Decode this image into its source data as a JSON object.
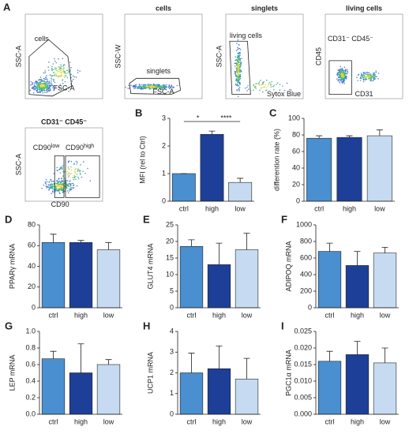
{
  "flow": {
    "panel": "A",
    "plots": [
      {
        "y_label": "SSC-A",
        "x_label": "FSC-A",
        "gates": [
          {
            "label": "cells"
          }
        ]
      },
      {
        "title": "cells",
        "y_label": "SSC-W",
        "x_label": "FSC-A",
        "gates": [
          {
            "label": "singlets"
          }
        ]
      },
      {
        "title": "singlets",
        "y_label": "SSC-A",
        "x_label": "Sytox Blue",
        "gates": [
          {
            "label": "living cells"
          }
        ]
      },
      {
        "title": "living cells",
        "y_label": "CD45",
        "x_label": "CD31",
        "gates": [
          {
            "label": "CD31⁻ CD45⁻"
          }
        ]
      },
      {
        "title": "CD31⁻ CD45⁻",
        "y_label": "SSC-A",
        "x_label": "CD90",
        "gates": [
          {
            "label": "CD90",
            "sup": "low"
          },
          {
            "label": "CD90",
            "sup": "high"
          }
        ]
      }
    ]
  },
  "chart_data": [
    {
      "type": "bar",
      "panel": "B",
      "y_label": "MFI (rel to Ctrl)",
      "categories": [
        "ctrl",
        "high",
        "low"
      ],
      "values": [
        1,
        2.42,
        0.68
      ],
      "errors": [
        0,
        0.12,
        0.15
      ],
      "colors": [
        "#4a8fcf",
        "#1e3f98",
        "#c6dbf1"
      ],
      "ylim": [
        0,
        3
      ],
      "yticks": [
        0,
        1,
        2,
        3
      ],
      "significance": [
        "*",
        "****"
      ]
    },
    {
      "type": "bar",
      "panel": "C",
      "y_label": "differention rate (%)",
      "categories": [
        "ctrl",
        "high",
        "low"
      ],
      "values": [
        76,
        77,
        79
      ],
      "errors": [
        3,
        2,
        7
      ],
      "colors": [
        "#4a8fcf",
        "#1e3f98",
        "#c6dbf1"
      ],
      "ylim": [
        0,
        100
      ],
      "yticks": [
        0,
        20,
        40,
        60,
        80,
        100
      ]
    },
    {
      "type": "bar",
      "panel": "D",
      "y_label": "PPARγ mRNA",
      "categories": [
        "ctrl",
        "high",
        "low"
      ],
      "values": [
        63,
        63,
        56
      ],
      "errors": [
        8,
        2,
        7
      ],
      "colors": [
        "#4a8fcf",
        "#1e3f98",
        "#c6dbf1"
      ],
      "ylim": [
        0,
        80
      ],
      "yticks": [
        0,
        20,
        40,
        60,
        80
      ]
    },
    {
      "type": "bar",
      "panel": "E",
      "y_label": "GLUT4 mRNA",
      "categories": [
        "ctrl",
        "high",
        "low"
      ],
      "values": [
        18.5,
        13,
        17.5
      ],
      "errors": [
        2,
        6.5,
        5
      ],
      "colors": [
        "#4a8fcf",
        "#1e3f98",
        "#c6dbf1"
      ],
      "ylim": [
        0,
        25
      ],
      "yticks": [
        0,
        5,
        10,
        15,
        20,
        25
      ]
    },
    {
      "type": "bar",
      "panel": "F",
      "y_label": "ADIPOQ mRNA",
      "categories": [
        "ctrl",
        "high",
        "low"
      ],
      "values": [
        680,
        510,
        660
      ],
      "errors": [
        100,
        170,
        70
      ],
      "colors": [
        "#4a8fcf",
        "#1e3f98",
        "#c6dbf1"
      ],
      "ylim": [
        0,
        1000
      ],
      "yticks": [
        0,
        200,
        400,
        600,
        800,
        1000
      ]
    },
    {
      "type": "bar",
      "panel": "G",
      "y_label": "LEP mRNA",
      "categories": [
        "ctrl",
        "high",
        "low"
      ],
      "values": [
        0.67,
        0.5,
        0.6
      ],
      "errors": [
        0.09,
        0.35,
        0.06
      ],
      "colors": [
        "#4a8fcf",
        "#1e3f98",
        "#c6dbf1"
      ],
      "ylim": [
        0,
        1
      ],
      "yticks": [
        {
          "value": 0,
          "label": "0.0"
        },
        0.2,
        0.4,
        0.6,
        0.8,
        {
          "value": 1,
          "label": "1.0"
        }
      ]
    },
    {
      "type": "bar",
      "panel": "H",
      "y_label": "UCP1 mRNA",
      "categories": [
        "ctrl",
        "high",
        "low"
      ],
      "values": [
        2.0,
        2.2,
        1.7
      ],
      "errors": [
        0.95,
        1.1,
        1.0
      ],
      "colors": [
        "#4a8fcf",
        "#1e3f98",
        "#c6dbf1"
      ],
      "ylim": [
        0,
        4
      ],
      "yticks": [
        0,
        1,
        2,
        3,
        4
      ]
    },
    {
      "type": "bar",
      "panel": "I",
      "y_label": "PGC1α mRNA",
      "categories": [
        "ctrl",
        "high",
        "low"
      ],
      "values": [
        0.016,
        0.018,
        0.0155
      ],
      "errors": [
        0.003,
        0.004,
        0.0045
      ],
      "colors": [
        "#4a8fcf",
        "#1e3f98",
        "#c6dbf1"
      ],
      "ylim": [
        0,
        0.025
      ],
      "yticks": [
        {
          "value": 0,
          "label": "0.000"
        },
        {
          "value": 0.005,
          "label": "0.005"
        },
        {
          "value": 0.01,
          "label": "0.010"
        },
        {
          "value": 0.015,
          "label": "0.015"
        },
        {
          "value": 0.02,
          "label": "0.020"
        },
        {
          "value": 0.025,
          "label": "0.025"
        }
      ]
    }
  ]
}
